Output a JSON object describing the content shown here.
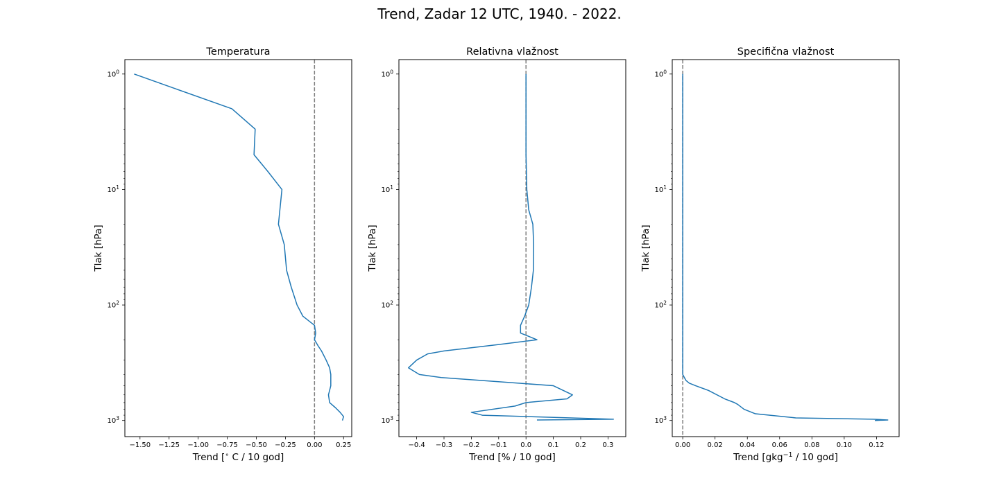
{
  "figure": {
    "suptitle": "Trend, Zadar 12 UTC, 1940. - 2022."
  },
  "chart_data": [
    {
      "type": "line",
      "title": "Temperatura",
      "xlabel": "Trend [$^{\\circ}$ C / 10 god]",
      "ylabel": "Tlak [hPa]",
      "xlim": [
        -1.63,
        0.32
      ],
      "ylim": [
        1380,
        0.75
      ],
      "yscale": "log",
      "xticks": [
        -1.5,
        -1.25,
        -1.0,
        -0.75,
        -0.5,
        -0.25,
        0.0,
        0.25
      ],
      "xtick_labels": [
        "−1.50",
        "−1.25",
        "−1.00",
        "−0.75",
        "−0.50",
        "−0.25",
        "0.00",
        "0.25"
      ],
      "yticks": [
        1,
        10,
        100,
        1000
      ],
      "ytick_labels": [
        "10^0",
        "10^1",
        "10^2",
        "10^3"
      ],
      "reference_line": {
        "x": 0,
        "style": "dashed",
        "color": "#7f7f7f"
      },
      "series": [
        {
          "color": "#1f77b4",
          "x": [
            -1.55,
            -0.71,
            -0.51,
            -0.52,
            -0.4,
            -0.28,
            -0.31,
            -0.26,
            -0.24,
            -0.2,
            -0.15,
            -0.1,
            0.0,
            0.01,
            0.0,
            0.03,
            0.06,
            0.1,
            0.13,
            0.14,
            0.14,
            0.12,
            0.13,
            0.18,
            0.22,
            0.25,
            0.24
          ],
          "y": [
            1,
            2,
            3,
            5,
            7,
            10,
            20,
            30,
            50,
            70,
            100,
            125,
            150,
            175,
            200,
            225,
            250,
            300,
            350,
            400,
            500,
            600,
            700,
            775,
            850,
            925,
            1000
          ]
        }
      ]
    },
    {
      "type": "line",
      "title": "Relativna vlažnost",
      "xlabel": "Trend [% / 10 god]",
      "ylabel": "Tlak [hPa]",
      "xlim": [
        -0.465,
        0.365
      ],
      "ylim": [
        1380,
        0.75
      ],
      "yscale": "log",
      "xticks": [
        -0.4,
        -0.3,
        -0.2,
        -0.1,
        0.0,
        0.1,
        0.2,
        0.3
      ],
      "xtick_labels": [
        "−0.4",
        "−0.3",
        "−0.2",
        "−0.1",
        "0.0",
        "0.1",
        "0.2",
        "0.3"
      ],
      "yticks": [
        1,
        10,
        100,
        1000
      ],
      "ytick_labels": [
        "10^0",
        "10^1",
        "10^2",
        "10^3"
      ],
      "reference_line": {
        "x": 0,
        "style": "dashed",
        "color": "#7f7f7f"
      },
      "series": [
        {
          "color": "#1f77b4",
          "x": [
            0.0,
            0.0,
            0.003,
            0.01,
            0.025,
            0.028,
            0.027,
            0.02,
            0.01,
            -0.005,
            -0.02,
            -0.02,
            0.04,
            -0.1,
            -0.3,
            -0.36,
            -0.4,
            -0.43,
            -0.39,
            -0.31,
            0.1,
            0.17,
            0.15,
            0.0,
            -0.04,
            -0.2,
            -0.16,
            0.32,
            0.04
          ],
          "y": [
            1,
            5,
            10,
            15,
            20,
            30,
            50,
            70,
            100,
            125,
            150,
            175,
            200,
            220,
            250,
            265,
            300,
            350,
            400,
            425,
            500,
            600,
            650,
            700,
            750,
            850,
            900,
            975,
            990
          ]
        }
      ]
    },
    {
      "type": "line",
      "title": "Specifična vlažnost",
      "xlabel": "Trend [gkg$^{-1}$ / 10 god]",
      "ylabel": "Tlak [hPa]",
      "xlim": [
        -0.0065,
        0.134
      ],
      "ylim": [
        1380,
        0.75
      ],
      "yscale": "log",
      "xticks": [
        0.0,
        0.02,
        0.04,
        0.06,
        0.08,
        0.1,
        0.12
      ],
      "xtick_labels": [
        "0.00",
        "0.02",
        "0.04",
        "0.06",
        "0.08",
        "0.10",
        "0.12"
      ],
      "yticks": [
        1,
        10,
        100,
        1000
      ],
      "ytick_labels": [
        "10^0",
        "10^1",
        "10^2",
        "10^3"
      ],
      "reference_line": {
        "x": 0,
        "style": "dashed",
        "color": "#7f7f7f"
      },
      "series": [
        {
          "color": "#1f77b4",
          "x": [
            0.0,
            0.0,
            0.0,
            0.0,
            0.0,
            0.0,
            0.0,
            0.0,
            0.0,
            0.001,
            0.002,
            0.004,
            0.008,
            0.016,
            0.026,
            0.032,
            0.034,
            0.038,
            0.045,
            0.07,
            0.118,
            0.127,
            0.119
          ],
          "y": [
            1,
            10,
            50,
            100,
            200,
            250,
            300,
            350,
            400,
            425,
            450,
            475,
            500,
            550,
            650,
            700,
            725,
            800,
            875,
            950,
            975,
            990,
            1000
          ]
        }
      ]
    }
  ]
}
